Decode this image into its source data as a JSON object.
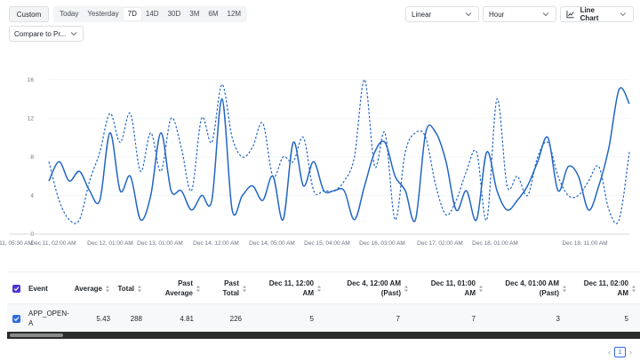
{
  "toolbar": {
    "custom_label": "Custom",
    "ranges": [
      "Today",
      "Yesterday",
      "7D",
      "14D",
      "30D",
      "3M",
      "6M",
      "12M"
    ],
    "active_range": "7D",
    "scale_select": "Linear",
    "interval_select": "Hour",
    "chart_type_select": "Line Chart",
    "compare_select": "Compare to Pr..."
  },
  "chart_data": {
    "type": "line",
    "title": "",
    "xlabel": "",
    "ylabel": "",
    "ylim": [
      0,
      18
    ],
    "yticks": [
      "0",
      "4",
      "8",
      "12",
      "16"
    ],
    "xticks": [
      "11, 05:30 AM",
      "Dec 11, 02:00 AM",
      "Dec 12, 01:00 AM",
      "Dec 13, 01:00 AM",
      "Dec 14, 12:00 AM",
      "Dec 14, 05:00 AM",
      "Dec 15, 04:00 AM",
      "Dec 16, 03:00 AM",
      "Dec 17, 02:00 AM",
      "Dec 18, 01:00 AM",
      "Dec 18, 11:00 AM"
    ],
    "grid": true,
    "colors": {
      "series": "#2266c4",
      "axis": "#c8ccd2",
      "grid": "#eef0f2"
    },
    "series": [
      {
        "style": "solid",
        "values": [
          5.5,
          7.5,
          5.5,
          6.5,
          4.5,
          3.5,
          10.5,
          4.5,
          6,
          1.5,
          4,
          10.5,
          4.5,
          4.5,
          2.5,
          4,
          3.5,
          14,
          2.5,
          4,
          5,
          3.5,
          6,
          1.5,
          9.5,
          5,
          7.5,
          4.5,
          4.5,
          4.5,
          1.5,
          5,
          8.5,
          9.5,
          6,
          4.5,
          1.5,
          10.5,
          10.5,
          7.5,
          2.5,
          4.5,
          1.5,
          8.5,
          4.5,
          2.5,
          3.5,
          5,
          7.5,
          10,
          4.5,
          7,
          6,
          2.5,
          5,
          9,
          15,
          13.5
        ]
      },
      {
        "style": "dashed",
        "values": [
          7.5,
          3.5,
          1.5,
          1.5,
          5.5,
          8.5,
          12.5,
          9.5,
          12.5,
          6.5,
          10.5,
          6.5,
          12,
          9,
          4.5,
          12,
          9.5,
          15.5,
          10,
          8,
          9,
          11.5,
          6,
          8,
          7.5,
          10,
          4.5,
          4.5,
          4.5,
          5.5,
          8,
          16,
          7,
          10.5,
          1.5,
          8.5,
          10.5,
          10,
          5,
          2,
          3.5,
          6.5,
          8.5,
          1.5,
          14,
          5,
          6,
          4,
          8,
          9.5,
          6,
          4,
          4,
          5.5,
          7,
          2.5,
          1.5,
          8.5
        ]
      }
    ]
  },
  "table": {
    "columns": [
      "Event",
      "Average",
      "Total",
      "Past Average",
      "Past Total",
      "Dec 11, 12:00 AM",
      "Dec 4, 12:00 AM (Past)",
      "Dec 11, 01:00 AM",
      "Dec 4, 01:00 AM (Past)",
      "Dec 11, 02:00 AM"
    ],
    "rows": [
      {
        "event": "APP_OPEN-A",
        "cells": [
          "5.43",
          "288",
          "4.81",
          "226",
          "5",
          "7",
          "7",
          "3",
          "5"
        ]
      }
    ]
  },
  "pagination": {
    "current": "1"
  }
}
